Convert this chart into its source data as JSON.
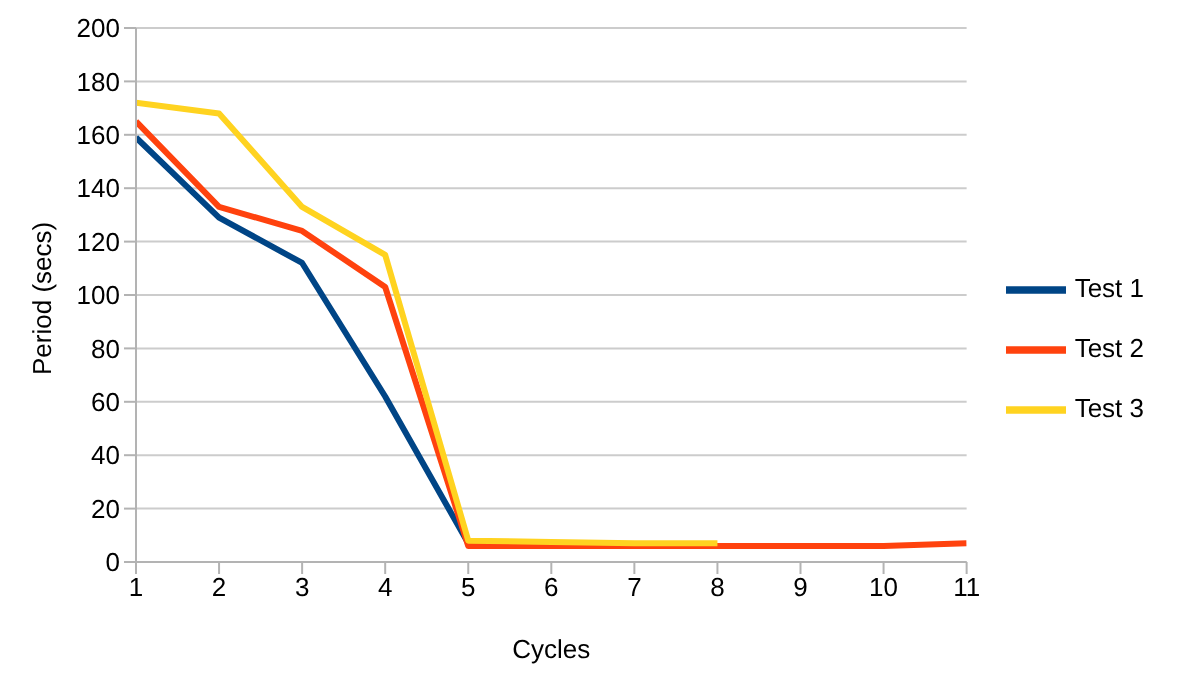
{
  "chart_data": {
    "type": "line",
    "xlabel": "Cycles",
    "ylabel": "Period (secs)",
    "x": [
      1,
      2,
      3,
      4,
      5,
      6,
      7,
      8,
      9,
      10,
      11
    ],
    "series": [
      {
        "name": "Test 1",
        "color": "#004586",
        "values": [
          159,
          129,
          112,
          62,
          7,
          null,
          null,
          null,
          null,
          null,
          null
        ]
      },
      {
        "name": "Test 2",
        "color": "#ff420e",
        "values": [
          165,
          133,
          124,
          103,
          6,
          6,
          6,
          6,
          6,
          6,
          7
        ]
      },
      {
        "name": "Test 3",
        "color": "#ffd320",
        "values": [
          172,
          168,
          133,
          115,
          8,
          7.5,
          7,
          7,
          null,
          null,
          null
        ]
      }
    ],
    "xlim": [
      1,
      11
    ],
    "xticks": [
      1,
      2,
      3,
      4,
      5,
      6,
      7,
      8,
      9,
      10,
      11
    ],
    "ylim": [
      0,
      200
    ],
    "yticks": [
      0,
      20,
      40,
      60,
      80,
      100,
      120,
      140,
      160,
      180,
      200
    ],
    "grid": "y",
    "legend": "right",
    "marker": "none",
    "line_style": "solid"
  }
}
